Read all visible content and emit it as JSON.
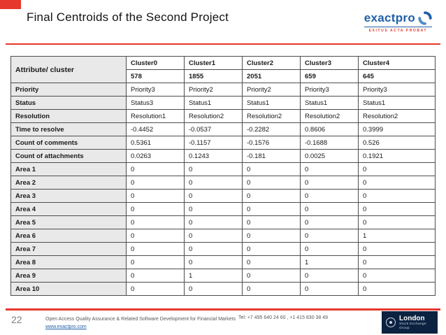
{
  "slide": {
    "title": "Final Centroids of the Second Project",
    "page_number": "22"
  },
  "logo": {
    "brand": "exactpro",
    "tagline": "EXITUS ACTA PROBAT",
    "brand_color": "#1f5fa9",
    "accent_color": "#e6382c"
  },
  "table": {
    "corner_header": "Attribute/ cluster",
    "columns": [
      "Cluster0",
      "Cluster1",
      "Cluster2",
      "Cluster3",
      "Cluster4"
    ],
    "counts": [
      "578",
      "1855",
      "2051",
      "659",
      "645"
    ],
    "rows": [
      {
        "label": "Priority",
        "values": [
          "Priority3",
          "Priority2",
          "Priority2",
          "Priority3",
          "Priority3"
        ]
      },
      {
        "label": "Status",
        "values": [
          "Status3",
          "Status1",
          "Status1",
          "Status1",
          "Status1"
        ]
      },
      {
        "label": "Resolution",
        "values": [
          "Resolution1",
          "Resolution2",
          "Resolution2",
          "Resolution2",
          "Resolution2"
        ]
      },
      {
        "label": "Time to resolve",
        "values": [
          "-0.4452",
          "-0.0537",
          "-0.2282",
          "0.8606",
          "0.3999"
        ]
      },
      {
        "label": "Count of comments",
        "values": [
          "0.5361",
          "-0.1157",
          "-0.1576",
          "-0.1688",
          "0.526"
        ]
      },
      {
        "label": "Count of attachments",
        "values": [
          "0.0263",
          "0.1243",
          "-0.181",
          "0.0025",
          "0.1921"
        ]
      },
      {
        "label": "Area 1",
        "values": [
          "0",
          "0",
          "0",
          "0",
          "0"
        ]
      },
      {
        "label": "Area 2",
        "values": [
          "0",
          "0",
          "0",
          "0",
          "0"
        ]
      },
      {
        "label": "Area 3",
        "values": [
          "0",
          "0",
          "0",
          "0",
          "0"
        ]
      },
      {
        "label": "Area 4",
        "values": [
          "0",
          "0",
          "0",
          "0",
          "0"
        ]
      },
      {
        "label": "Area 5",
        "values": [
          "0",
          "0",
          "0",
          "0",
          "0"
        ]
      },
      {
        "label": "Area 6",
        "values": [
          "0",
          "0",
          "0",
          "0",
          "1"
        ]
      },
      {
        "label": "Area 7",
        "values": [
          "0",
          "0",
          "0",
          "0",
          "0"
        ]
      },
      {
        "label": "Area 8",
        "values": [
          "0",
          "0",
          "0",
          "1",
          "0"
        ]
      },
      {
        "label": "Area 9",
        "values": [
          "0",
          "1",
          "0",
          "0",
          "0"
        ]
      },
      {
        "label": "Area 10",
        "values": [
          "0",
          "0",
          "0",
          "0",
          "0"
        ]
      }
    ]
  },
  "footer": {
    "description": "Open Access Quality Assurance & Related Software Development for Financial Markets",
    "website": "www.exactpro.com",
    "phone": "Tel: +7 495 640 24 60 ,  +1 415 830 38 49",
    "lse_line1": "London",
    "lse_line2": "Stock Exchange Group"
  }
}
